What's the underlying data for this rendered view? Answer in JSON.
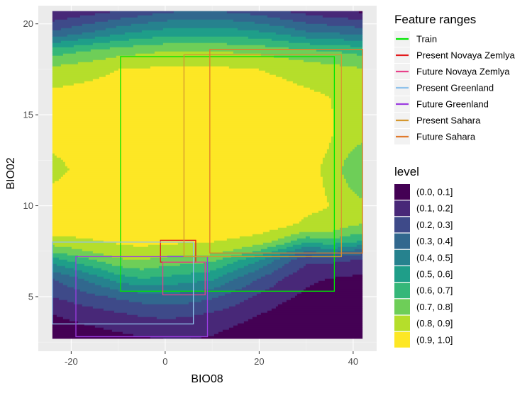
{
  "chart_data": {
    "type": "contour",
    "xlabel": "BIO08",
    "ylabel": "BIO02",
    "xlim": [
      -27,
      45
    ],
    "ylim": [
      2,
      21
    ],
    "x_ticks": [
      -20,
      0,
      20,
      40
    ],
    "y_ticks": [
      5,
      10,
      15,
      20
    ],
    "grid": true,
    "field_extent": {
      "x": [
        -24,
        42
      ],
      "y": [
        2.7,
        20.7
      ]
    },
    "field_approx": {
      "x": [
        -24,
        -15,
        -10,
        -5,
        0,
        5,
        10,
        15,
        20,
        25,
        30,
        35,
        40,
        42
      ],
      "y": [
        2.7,
        4,
        5,
        6,
        7,
        7.5,
        8,
        8.5,
        9,
        10,
        12,
        14,
        16,
        17.5,
        18.5,
        19.5,
        20.7
      ],
      "z_rows_bottom_to_top": [
        [
          0.02,
          0.05,
          0.07,
          0.09,
          0.1,
          0.1,
          0.09,
          0.05,
          0.03,
          0.02,
          0.02,
          0.02,
          0.02,
          0.02
        ],
        [
          0.1,
          0.15,
          0.18,
          0.21,
          0.22,
          0.21,
          0.18,
          0.14,
          0.1,
          0.06,
          0.04,
          0.03,
          0.02,
          0.02
        ],
        [
          0.2,
          0.28,
          0.32,
          0.35,
          0.36,
          0.35,
          0.32,
          0.25,
          0.18,
          0.12,
          0.08,
          0.05,
          0.04,
          0.04
        ],
        [
          0.3,
          0.45,
          0.55,
          0.6,
          0.58,
          0.55,
          0.52,
          0.4,
          0.3,
          0.2,
          0.12,
          0.1,
          0.08,
          0.08
        ],
        [
          0.55,
          0.7,
          0.78,
          0.8,
          0.76,
          0.74,
          0.72,
          0.62,
          0.5,
          0.35,
          0.22,
          0.22,
          0.2,
          0.2
        ],
        [
          0.72,
          0.82,
          0.87,
          0.88,
          0.86,
          0.85,
          0.84,
          0.78,
          0.7,
          0.55,
          0.4,
          0.45,
          0.38,
          0.35
        ],
        [
          0.85,
          0.89,
          0.91,
          0.92,
          0.91,
          0.91,
          0.9,
          0.88,
          0.84,
          0.75,
          0.6,
          0.65,
          0.6,
          0.58
        ],
        [
          0.92,
          0.93,
          0.94,
          0.95,
          0.95,
          0.95,
          0.94,
          0.93,
          0.91,
          0.86,
          0.78,
          0.8,
          0.72,
          0.7
        ],
        [
          0.95,
          0.96,
          0.97,
          0.97,
          0.97,
          0.97,
          0.97,
          0.96,
          0.95,
          0.93,
          0.88,
          0.86,
          0.82,
          0.8
        ],
        [
          0.96,
          0.97,
          0.98,
          0.98,
          0.98,
          0.98,
          0.98,
          0.98,
          0.97,
          0.96,
          0.93,
          0.9,
          0.85,
          0.82
        ],
        [
          0.86,
          0.96,
          0.98,
          0.98,
          0.98,
          0.98,
          0.98,
          0.98,
          0.97,
          0.96,
          0.93,
          0.88,
          0.72,
          0.7
        ],
        [
          0.95,
          0.97,
          0.98,
          0.98,
          0.98,
          0.98,
          0.98,
          0.98,
          0.97,
          0.96,
          0.94,
          0.91,
          0.86,
          0.84
        ],
        [
          0.93,
          0.95,
          0.96,
          0.96,
          0.96,
          0.96,
          0.96,
          0.96,
          0.95,
          0.94,
          0.92,
          0.9,
          0.88,
          0.86
        ],
        [
          0.83,
          0.87,
          0.9,
          0.91,
          0.92,
          0.92,
          0.92,
          0.91,
          0.9,
          0.88,
          0.86,
          0.84,
          0.82,
          0.8
        ],
        [
          0.65,
          0.72,
          0.76,
          0.78,
          0.8,
          0.8,
          0.8,
          0.79,
          0.78,
          0.75,
          0.72,
          0.7,
          0.68,
          0.66
        ],
        [
          0.32,
          0.42,
          0.48,
          0.52,
          0.55,
          0.56,
          0.56,
          0.55,
          0.52,
          0.48,
          0.42,
          0.4,
          0.38,
          0.36
        ],
        [
          0.1,
          0.16,
          0.2,
          0.24,
          0.28,
          0.3,
          0.3,
          0.28,
          0.25,
          0.2,
          0.16,
          0.12,
          0.1,
          0.08
        ]
      ]
    },
    "feature_ranges_title": "Feature ranges",
    "feature_ranges": [
      {
        "name": "Train",
        "color": "#00e600",
        "x": [
          -9.5,
          36
        ],
        "y": [
          5.3,
          18.2
        ]
      },
      {
        "name": "Present Novaya Zemlya",
        "color": "#e31a1c",
        "x": [
          -1,
          6.5
        ],
        "y": [
          6.9,
          8.1
        ]
      },
      {
        "name": "Future Novaya Zemlya",
        "color": "#e8418a",
        "x": [
          -0.5,
          8.5
        ],
        "y": [
          5.1,
          6.9
        ]
      },
      {
        "name": "Present Greenland",
        "color": "#8fc2eb",
        "x": [
          -24,
          6
        ],
        "y": [
          3.5,
          8.0
        ]
      },
      {
        "name": "Future Greenland",
        "color": "#9b3ce0",
        "x": [
          -19,
          9
        ],
        "y": [
          2.8,
          7.2
        ]
      },
      {
        "name": "Present Sahara",
        "color": "#d4972e",
        "x": [
          4,
          37.5
        ],
        "y": [
          7.2,
          18.3
        ]
      },
      {
        "name": "Future Sahara",
        "color": "#e07a2c",
        "x": [
          9.5,
          42
        ],
        "y": [
          7.4,
          18.6
        ]
      }
    ],
    "level_title": "level",
    "levels": [
      {
        "label": "(0.0, 0.1]",
        "color": "#440154"
      },
      {
        "label": "(0.1, 0.2]",
        "color": "#482878"
      },
      {
        "label": "(0.2, 0.3]",
        "color": "#3e4a89"
      },
      {
        "label": "(0.3, 0.4]",
        "color": "#31688e"
      },
      {
        "label": "(0.4, 0.5]",
        "color": "#26828e"
      },
      {
        "label": "(0.5, 0.6]",
        "color": "#1f9e89"
      },
      {
        "label": "(0.6, 0.7]",
        "color": "#35b779"
      },
      {
        "label": "(0.7, 0.8]",
        "color": "#6ece58"
      },
      {
        "label": "(0.8, 0.9]",
        "color": "#b5de2b"
      },
      {
        "label": "(0.9, 1.0]",
        "color": "#fde725"
      }
    ]
  }
}
